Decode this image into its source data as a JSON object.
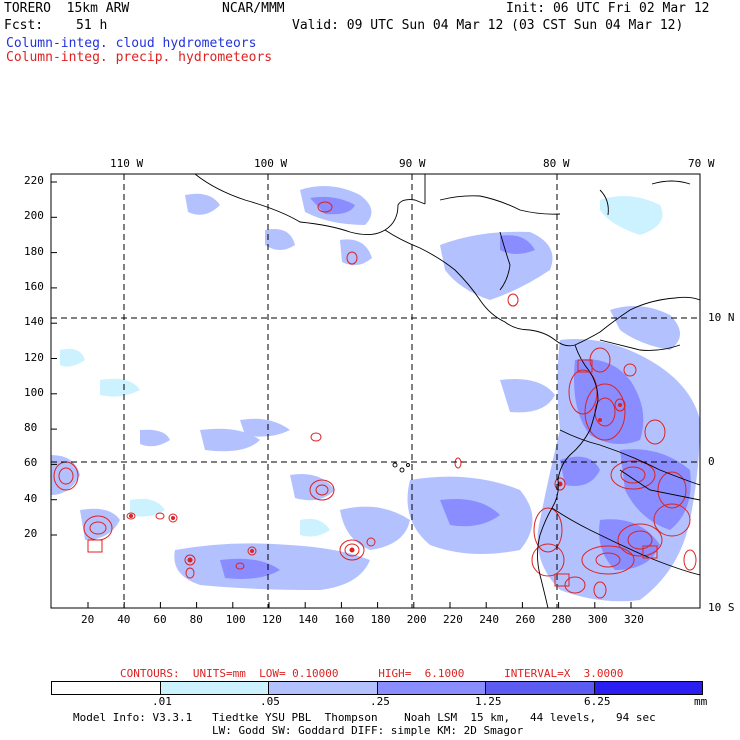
{
  "header": {
    "model": "TORERO  15km ARW",
    "org": "NCAR/MMM",
    "init": "Init: 06 UTC Fri 02 Mar 12",
    "fcst_label": "Fcst:",
    "fcst_value": "51 h",
    "valid": "Valid: 09 UTC Sun 04 Mar 12 (03 CST Sun 04 Mar 12)",
    "field1": "Column-integ. cloud hydrometeors",
    "field2": "Column-integ. precip. hydrometeors",
    "field1_color": "#2233dd",
    "field2_color": "#dd2222"
  },
  "map": {
    "lon_labels": [
      "110 W",
      "100 W",
      "90 W",
      "80 W",
      "70 W"
    ],
    "lat_labels": [
      "10 N",
      "0",
      "10 S"
    ],
    "y_ticks": [
      "220",
      "200",
      "180",
      "160",
      "140",
      "120",
      "100",
      "80",
      "60",
      "40",
      "20"
    ],
    "x_ticks": [
      "20",
      "40",
      "60",
      "80",
      "100",
      "120",
      "140",
      "160",
      "180",
      "200",
      "220",
      "240",
      "260",
      "280",
      "300",
      "320"
    ]
  },
  "contour_info": "CONTOURS:  UNITS=mm  LOW= 0.10000      HIGH=  6.1000      INTERVAL=X  3.0000",
  "colorbar": {
    "labels": [
      ".01",
      ".05",
      ".25",
      "1.25",
      "6.25"
    ],
    "unit": "mm",
    "colors": [
      "#ffffff",
      "#ccf2ff",
      "#b3c2ff",
      "#8a8dff",
      "#5c5cf2",
      "#2a1ff0"
    ]
  },
  "footer": {
    "line1": "Model Info: V3.3.1   Tiedtke YSU PBL  Thompson    Noah LSM  15 km,   44 levels,   94 sec",
    "line2": "LW: Godd SW: Goddard DIFF: simple KM: 2D Smagor"
  }
}
